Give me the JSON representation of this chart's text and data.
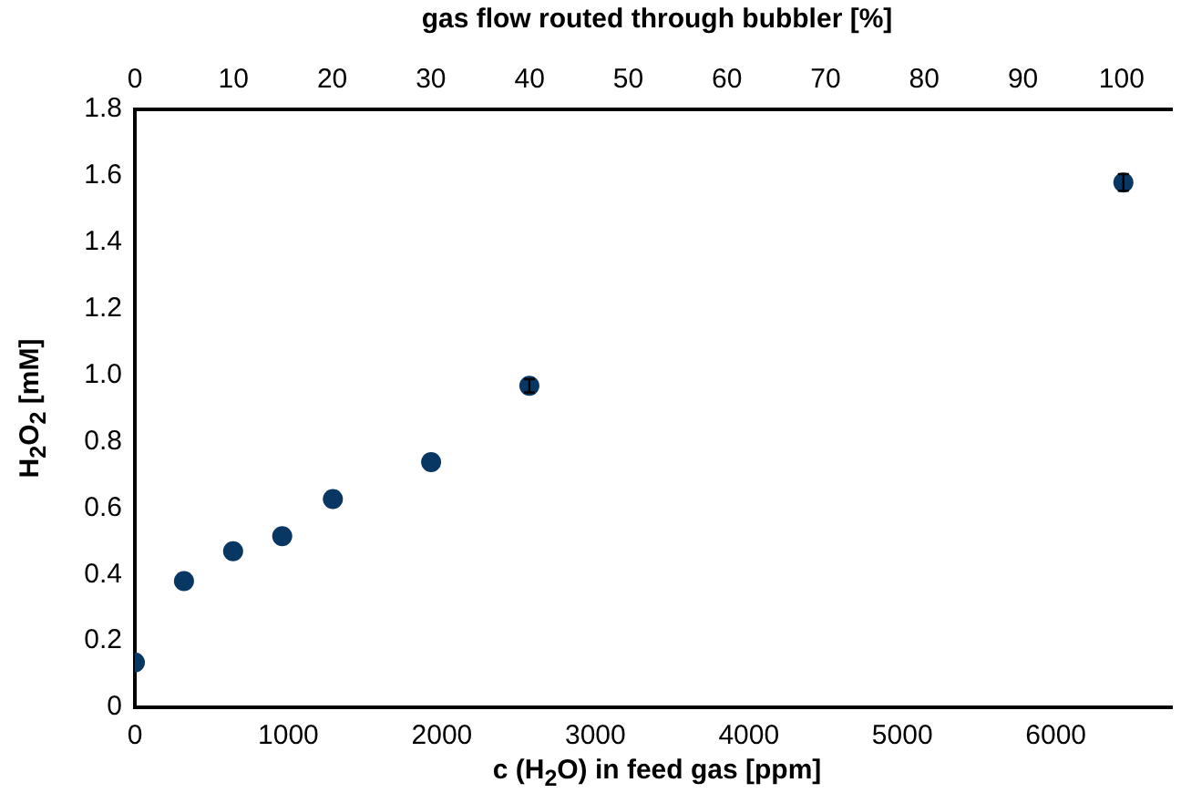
{
  "chart_data": {
    "type": "scatter",
    "xlabel": "c (H$_{2}$O) in feed gas [ppm]",
    "ylabel": "H$_{2}$O$_{2}$ [mM]",
    "x2label": "gas flow routed through bubbler [%]",
    "x": [
      0,
      320,
      640,
      960,
      1290,
      1930,
      2570,
      6440
    ],
    "series": [
      {
        "color": "#083763",
        "values": [
          0.135,
          0.38,
          0.47,
          0.515,
          0.627,
          0.738,
          0.968,
          1.58
        ],
        "errors": [
          null,
          null,
          null,
          null,
          null,
          null,
          0.02,
          0.025
        ]
      }
    ],
    "xlim": [
      0,
      6750
    ],
    "xticks": [
      0,
      1000,
      2000,
      3000,
      4000,
      5000,
      6000
    ],
    "x2lim": [
      0,
      105
    ],
    "x2ticks": [
      0,
      10,
      20,
      30,
      40,
      50,
      60,
      70,
      80,
      90,
      100
    ],
    "ylim": [
      0,
      1.8
    ],
    "yticks": [
      0,
      {
        "value": 0.2,
        "label": "0.2"
      },
      {
        "value": 0.4,
        "label": "0.4"
      },
      {
        "value": 0.6,
        "label": "0.6"
      },
      {
        "value": 0.8,
        "label": "0.8"
      },
      {
        "value": 1,
        "label": "1.0"
      },
      {
        "value": 1.2,
        "label": "1.2"
      },
      {
        "value": 1.4,
        "label": "1.4"
      },
      {
        "value": 1.6,
        "label": "1.6"
      },
      {
        "value": 1.8,
        "label": "1.8"
      }
    ],
    "grid": false,
    "legend": false,
    "marker": "circle"
  }
}
